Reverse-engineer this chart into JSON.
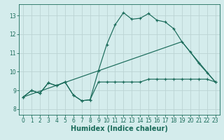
{
  "xlabel": "Humidex (Indice chaleur)",
  "xlim": [
    -0.5,
    23.5
  ],
  "ylim": [
    7.7,
    13.6
  ],
  "xticks": [
    0,
    1,
    2,
    3,
    4,
    5,
    6,
    7,
    8,
    9,
    10,
    11,
    12,
    13,
    14,
    15,
    16,
    17,
    18,
    19,
    20,
    21,
    22,
    23
  ],
  "yticks": [
    8,
    9,
    10,
    11,
    12,
    13
  ],
  "bg_color": "#d4ecec",
  "grid_color": "#bbd4d4",
  "line_color": "#1a6b5a",
  "line1_x": [
    0,
    1,
    2,
    3,
    4,
    5,
    6,
    7,
    8,
    9,
    10,
    11,
    12,
    13,
    14,
    15,
    16,
    17,
    18,
    19,
    20,
    21,
    22,
    23
  ],
  "line1_y": [
    8.65,
    9.0,
    8.85,
    9.4,
    9.25,
    9.45,
    8.75,
    8.45,
    8.5,
    10.05,
    11.45,
    12.5,
    13.15,
    12.8,
    12.85,
    13.1,
    12.75,
    12.65,
    12.3,
    11.6,
    11.05,
    10.45,
    9.95,
    9.45
  ],
  "line2_x": [
    0,
    1,
    2,
    3,
    4,
    5,
    6,
    7,
    8,
    9,
    10,
    11,
    12,
    13,
    14,
    15,
    16,
    17,
    18,
    19,
    20,
    21,
    22,
    23
  ],
  "line2_y": [
    8.65,
    9.0,
    8.85,
    9.4,
    9.25,
    9.45,
    8.75,
    8.45,
    8.5,
    9.45,
    9.45,
    9.45,
    9.45,
    9.45,
    9.45,
    9.6,
    9.6,
    9.6,
    9.6,
    9.6,
    9.6,
    9.6,
    9.6,
    9.45
  ],
  "line3_x": [
    0,
    19,
    20,
    23
  ],
  "line3_y": [
    8.65,
    11.6,
    11.05,
    9.45
  ],
  "tickfont_size": 5.5,
  "labelfont_size": 7.0,
  "lw": 0.85,
  "ms": 3.0,
  "mew": 0.85
}
